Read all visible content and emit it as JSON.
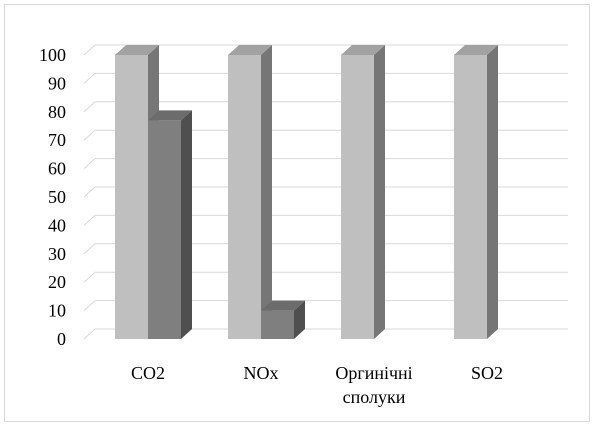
{
  "chart_data": {
    "type": "bar",
    "title": "",
    "xlabel": "",
    "ylabel": "",
    "categories": [
      [
        "CO2"
      ],
      [
        "NOx"
      ],
      [
        "Оргинічні",
        "сполуки"
      ],
      [
        "SO2"
      ]
    ],
    "series": [
      {
        "values": [
          100,
          100,
          100,
          100
        ],
        "color": "#bfbfbf"
      },
      {
        "values": [
          77,
          10,
          0,
          0
        ],
        "color": "#7f7f7f"
      }
    ],
    "ylim": [
      0,
      100
    ],
    "yticks": [
      "0",
      "10",
      "20",
      "30",
      "40",
      "50",
      "60",
      "70",
      "80",
      "90",
      "100"
    ],
    "grid": true,
    "legend": "none",
    "style": "3d-column"
  }
}
